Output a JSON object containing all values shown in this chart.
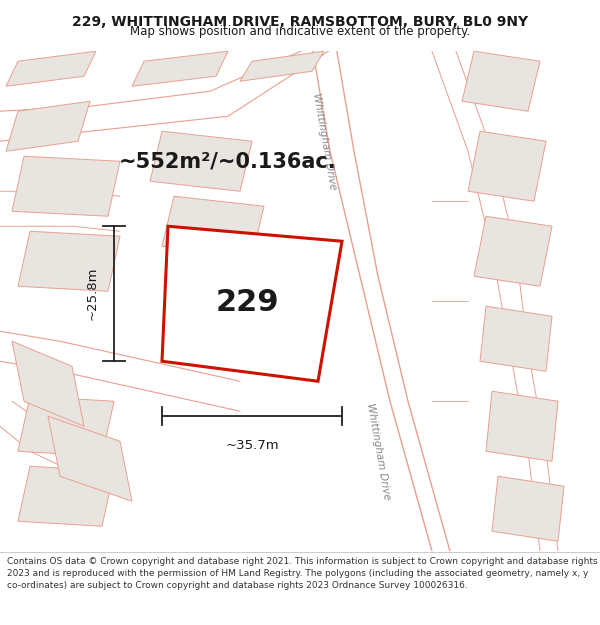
{
  "title_line1": "229, WHITTINGHAM DRIVE, RAMSBOTTOM, BURY, BL0 9NY",
  "title_line2": "Map shows position and indicative extent of the property.",
  "area_text": "~552m²/~0.136ac.",
  "property_number": "229",
  "dim_width": "~35.7m",
  "dim_height": "~25.8m",
  "street_label": "Whittingham Drive",
  "footer_text": "Contains OS data © Crown copyright and database right 2021. This information is subject to Crown copyright and database rights 2023 and is reproduced with the permission of HM Land Registry. The polygons (including the associated geometry, namely x, y co-ordinates) are subject to Crown copyright and database rights 2023 Ordnance Survey 100026316.",
  "map_bg_color": "#f2f0ee",
  "poly_fill_color": "#e8e4e0",
  "poly_edge_color": "#e8a090",
  "highlight_fill": "#ffffff",
  "highlight_edge": "#cc1100",
  "road_line_color": "#e8a090",
  "dim_line_color": "#222222",
  "text_color": "#1a1a1a",
  "street_text_color": "#888888",
  "title_fontsize": 10,
  "subtitle_fontsize": 8.5,
  "area_fontsize": 15,
  "num_fontsize": 22,
  "dim_fontsize": 9.5,
  "street_fontsize": 7.5,
  "footer_fontsize": 6.5
}
